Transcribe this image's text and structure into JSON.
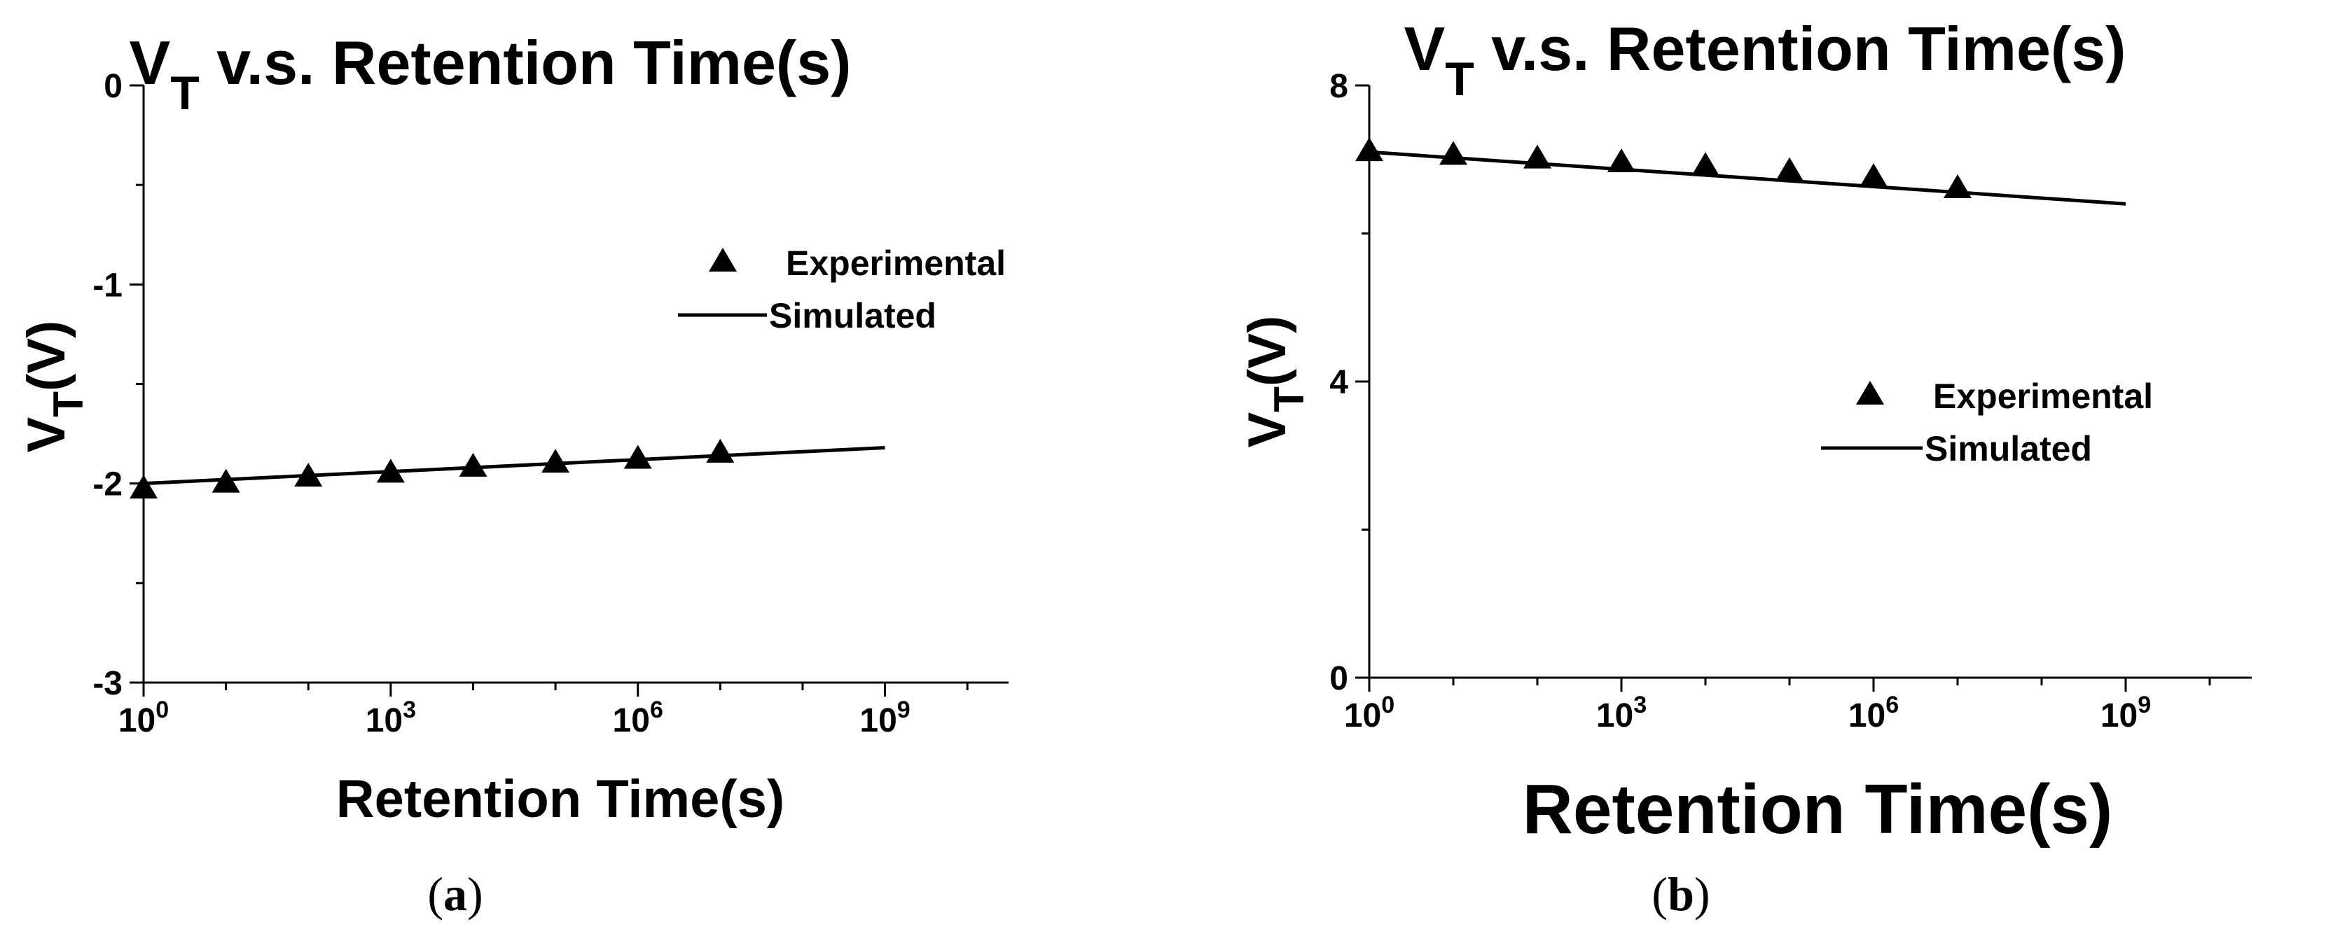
{
  "colors": {
    "ink": "#000000",
    "background": "#ffffff"
  },
  "chart_data": [
    {
      "id": "a",
      "type": "scatter",
      "caption": "(a)",
      "title": {
        "main": "V",
        "sub": "T",
        "rest": " v.s. Retention Time(s)"
      },
      "xlabel": "Retention Time(s)",
      "ylabel": {
        "main": "V",
        "sub": "T",
        "rest": "(V)"
      },
      "xscale": "log10",
      "xlim_exp": [
        0,
        10.5
      ],
      "ylim": [
        -3,
        0
      ],
      "xticks": [
        {
          "exp": 0,
          "base": "10",
          "power": "0"
        },
        {
          "exp": 3,
          "base": "10",
          "power": "3"
        },
        {
          "exp": 6,
          "base": "10",
          "power": "6"
        },
        {
          "exp": 9,
          "base": "10",
          "power": "9"
        }
      ],
      "yticks": [
        {
          "value": 0,
          "label": "0"
        },
        {
          "value": -1,
          "label": "-1"
        },
        {
          "value": -2,
          "label": "-2"
        },
        {
          "value": -3,
          "label": "-3"
        }
      ],
      "legend_position": "top-right",
      "series": [
        {
          "name": "Experimental",
          "marker": "triangle",
          "x_exp": [
            0,
            1,
            2,
            3,
            4,
            5,
            6,
            7
          ],
          "y": [
            -2.03,
            -2.0,
            -1.97,
            -1.95,
            -1.92,
            -1.9,
            -1.88,
            -1.85
          ]
        },
        {
          "name": "Simulated",
          "marker": "line",
          "x_exp": [
            0,
            9
          ],
          "y": [
            -2.0,
            -1.82
          ]
        }
      ]
    },
    {
      "id": "b",
      "type": "scatter",
      "caption": "(b)",
      "title": {
        "main": "V",
        "sub": "T",
        "rest": " v.s. Retention Time(s)"
      },
      "xlabel": "Retention Time(s)",
      "ylabel": {
        "main": "V",
        "sub": "T",
        "rest": "(V)"
      },
      "xscale": "log10",
      "xlim_exp": [
        0,
        10.5
      ],
      "ylim": [
        0,
        8
      ],
      "xticks": [
        {
          "exp": 0,
          "base": "10",
          "power": "0"
        },
        {
          "exp": 3,
          "base": "10",
          "power": "3"
        },
        {
          "exp": 6,
          "base": "10",
          "power": "6"
        },
        {
          "exp": 9,
          "base": "10",
          "power": "9"
        }
      ],
      "yticks": [
        {
          "value": 0,
          "label": "0"
        },
        {
          "value": 4,
          "label": "4"
        },
        {
          "value": 8,
          "label": "8"
        }
      ],
      "legend_position": "center-right",
      "series": [
        {
          "name": "Experimental",
          "marker": "triangle",
          "x_exp": [
            0,
            1,
            2,
            3,
            4,
            5,
            6,
            7
          ],
          "y": [
            7.1,
            7.05,
            7.0,
            6.95,
            6.9,
            6.83,
            6.75,
            6.6
          ]
        },
        {
          "name": "Simulated",
          "marker": "line",
          "x_exp": [
            0,
            9
          ],
          "y": [
            7.1,
            6.4
          ]
        }
      ]
    }
  ]
}
